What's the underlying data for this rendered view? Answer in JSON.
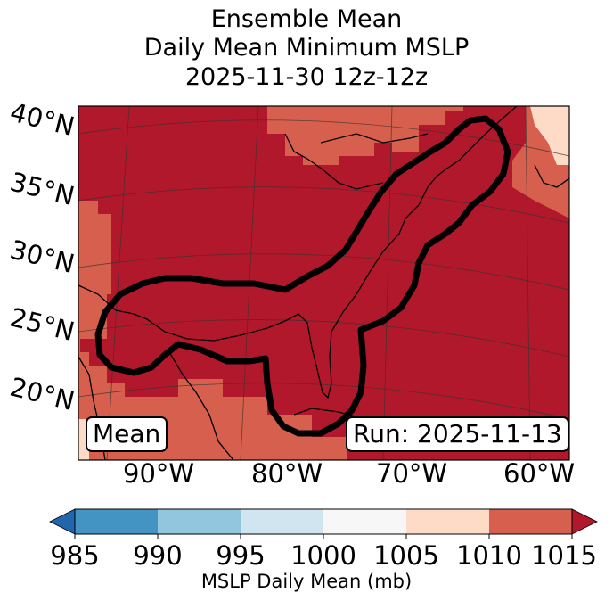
{
  "title": {
    "line1": "Ensemble Mean",
    "line2": "Daily Mean Minimum MSLP",
    "line3": "2025-11-30 12z-12z"
  },
  "map": {
    "lat_labels": [
      "40°N",
      "35°N",
      "30°N",
      "25°N",
      "20°N"
    ],
    "lon_labels": [
      "90°W",
      "80°W",
      "70°W",
      "60°W"
    ],
    "left_box": "Mean",
    "right_box": "Run: 2025-11-13",
    "fill_colors": {
      "dark_red": "#b2182b",
      "medium_red": "#d6604d",
      "light_peach": "#fddbc7"
    },
    "contour_color": "#000000"
  },
  "colorbar": {
    "levels": [
      "985",
      "990",
      "995",
      "1000",
      "1005",
      "1010",
      "1015"
    ],
    "colors": [
      "#2166ac",
      "#4393c3",
      "#92c5de",
      "#d1e5f0",
      "#f7f7f7",
      "#fddbc7",
      "#d6604d",
      "#b2182b"
    ],
    "label": "MSLP Daily Mean (mb)"
  }
}
